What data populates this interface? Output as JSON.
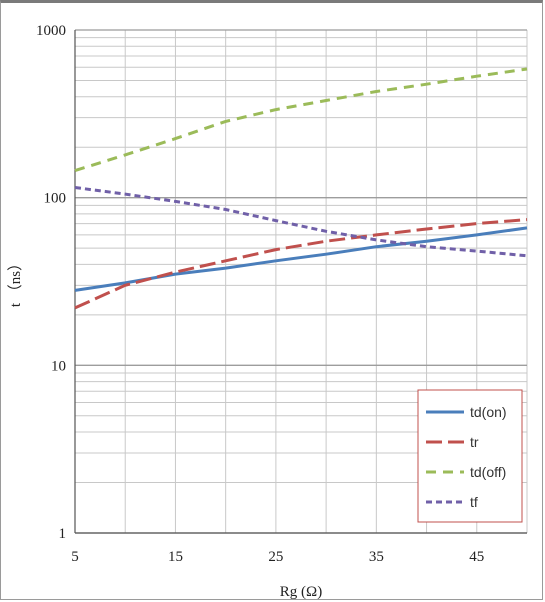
{
  "chart_data": {
    "type": "line",
    "title": "",
    "xlabel": "Rg (Ω)",
    "ylabel": "t （ns）",
    "x_scale": "linear",
    "y_scale": "log",
    "xlim": [
      5,
      50
    ],
    "ylim": [
      1,
      1000
    ],
    "x_ticks": [
      "5",
      "15",
      "25",
      "35",
      "45"
    ],
    "y_ticks": [
      "1",
      "10",
      "100",
      "1000"
    ],
    "grid": true,
    "legend_position": "bottom-right",
    "series": [
      {
        "name": "td(on)",
        "color": "#4a7ebb",
        "style": "solid",
        "x": [
          5,
          10,
          15,
          20,
          25,
          30,
          35,
          40,
          45,
          50
        ],
        "y": [
          28,
          31,
          35,
          38,
          42,
          46,
          51,
          55,
          60,
          66
        ]
      },
      {
        "name": "tr",
        "color": "#c0504d",
        "style": "long-dash",
        "x": [
          5,
          10,
          15,
          20,
          25,
          30,
          35,
          40,
          45,
          50
        ],
        "y": [
          22,
          30,
          36,
          42,
          49,
          55,
          60,
          65,
          70,
          74
        ]
      },
      {
        "name": "td(off)",
        "color": "#9bbb59",
        "style": "dash",
        "x": [
          5,
          10,
          15,
          20,
          25,
          30,
          35,
          40,
          45,
          50
        ],
        "y": [
          145,
          180,
          225,
          285,
          335,
          380,
          430,
          475,
          530,
          585
        ]
      },
      {
        "name": "tf",
        "color": "#7060a8",
        "style": "short-dash",
        "x": [
          5,
          10,
          15,
          20,
          25,
          30,
          35,
          40,
          45,
          50
        ],
        "y": [
          115,
          105,
          95,
          85,
          73,
          63,
          56,
          51,
          48,
          45
        ]
      }
    ]
  }
}
